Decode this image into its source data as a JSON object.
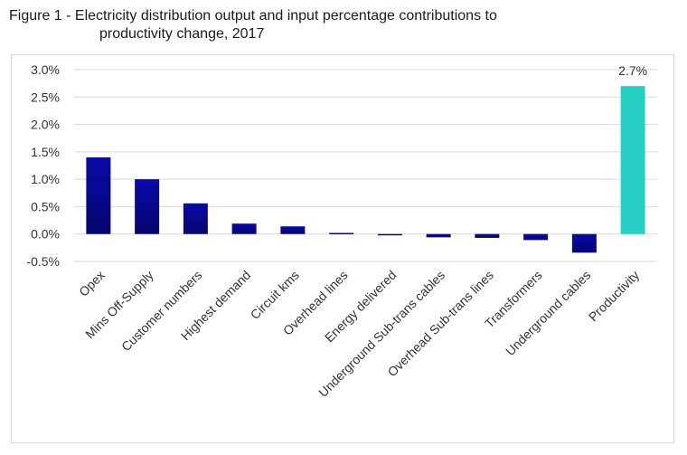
{
  "title_line1": "Figure 1 - Electricity distribution output and input percentage contributions to",
  "title_line2": "productivity change, 2017",
  "colors": {
    "bar": "#0a0aa0",
    "bar_dark": "#040466",
    "highlight": "#24d1c4",
    "grid": "#d9d9d9"
  },
  "chart_data": {
    "type": "bar",
    "title": "Figure 1 - Electricity distribution output and input percentage contributions to productivity change, 2017",
    "xlabel": "",
    "ylabel": "",
    "ylim": [
      -0.5,
      3.0
    ],
    "yticks": [
      3.0,
      2.5,
      2.0,
      1.5,
      1.0,
      0.5,
      0.0,
      -0.5
    ],
    "ytick_labels": [
      "3.0%",
      "2.5%",
      "2.0%",
      "1.5%",
      "1.0%",
      "0.5%",
      "0.0%",
      "-0.5%"
    ],
    "grid": true,
    "categories": [
      "Opex",
      "Mins Off-Supply",
      "Customer numbers",
      "Highest demand",
      "Circuit kms",
      "Overhead lines",
      "Energy delivered",
      "Underground Sub-trans cables",
      "Overhead Sub-trans lines",
      "Transformers",
      "Underground cables",
      "Productivity"
    ],
    "values": [
      1.4,
      1.0,
      0.56,
      0.19,
      0.14,
      0.02,
      -0.02,
      -0.06,
      -0.07,
      -0.11,
      -0.34,
      2.7
    ],
    "highlight_index": 11,
    "data_labels": [
      {
        "index": 11,
        "text": "2.7%"
      }
    ]
  }
}
